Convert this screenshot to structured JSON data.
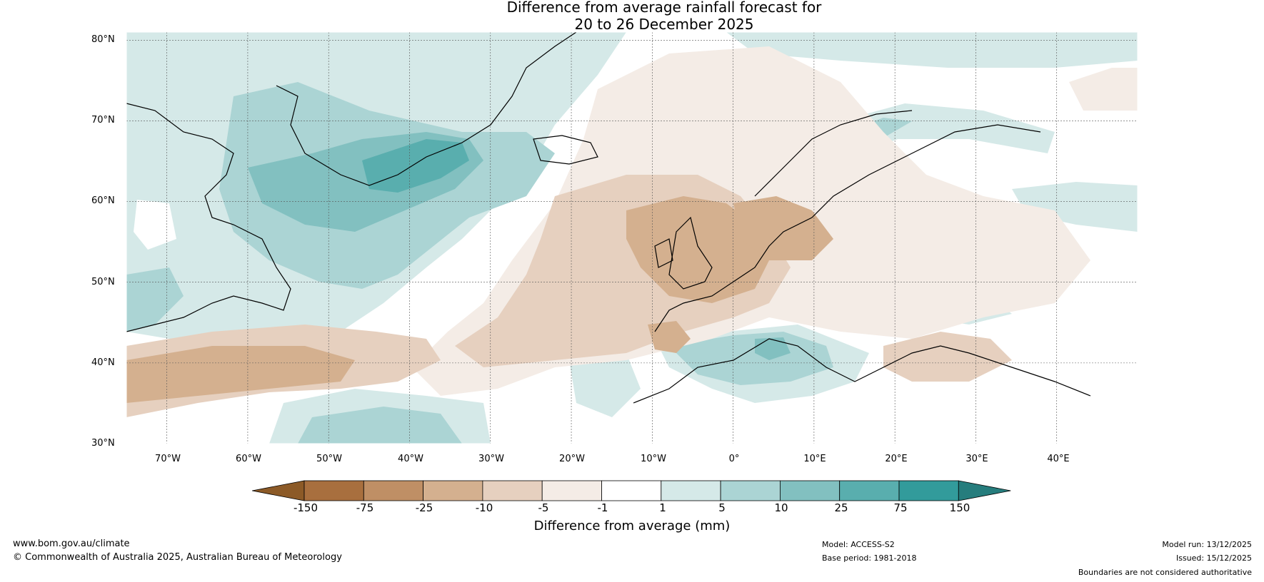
{
  "header": {
    "title_line1": "Difference from average rainfall forecast for",
    "title_line2": "20 to 26 December 2025"
  },
  "map": {
    "lat_labels": [
      "80°N",
      "70°N",
      "60°N",
      "50°N",
      "40°N",
      "30°N"
    ],
    "lon_labels": [
      "70°W",
      "60°W",
      "50°W",
      "40°W",
      "30°W",
      "20°W",
      "10°W",
      "0°",
      "10°E",
      "20°E",
      "30°E",
      "40°E"
    ],
    "extent": {
      "lon_min": -75,
      "lon_max": 50,
      "lat_min": 30,
      "lat_max": 81
    },
    "graticule_lons": [
      -70,
      -60,
      -50,
      -40,
      -30,
      -20,
      -10,
      0,
      10,
      20,
      30,
      40
    ],
    "graticule_lats": [
      80,
      70,
      60,
      50,
      40
    ],
    "ocean_color": "#ffffff",
    "coastline_color": "#000000",
    "border_color": "#808080"
  },
  "legend": {
    "title": "Difference from average (mm)",
    "ticks": [
      "-150",
      "-75",
      "-25",
      "-10",
      "-5",
      "-1",
      "1",
      "5",
      "10",
      "25",
      "75",
      "150"
    ],
    "colors": [
      "#8c5a27",
      "#a86f3e",
      "#bf8f65",
      "#d4b08f",
      "#e6d0bf",
      "#f4ece6",
      "#ffffff",
      "#d5e9e8",
      "#abd4d4",
      "#82c0c0",
      "#59aeae",
      "#329b9b",
      "#267d7d"
    ]
  },
  "footer": {
    "website": "www.bom.gov.au/climate",
    "copyright": "© Commonwealth of Australia 2025, Australian Bureau of Meteorology",
    "model": "Model: ACCESS-S2",
    "base_period": "Base period: 1981-2018",
    "model_run": "Model run: 13/12/2025",
    "issued": "Issued: 15/12/2025",
    "disclaimer": "Boundaries are not considered authoritative"
  }
}
